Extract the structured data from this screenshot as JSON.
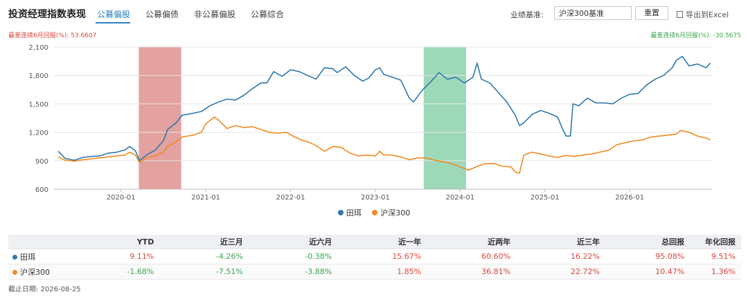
{
  "header": {
    "title": "投资经理指数表现",
    "tabs": [
      {
        "label": "公募偏股",
        "active": true
      },
      {
        "label": "公募偏债",
        "active": false
      },
      {
        "label": "非公募偏股",
        "active": false
      },
      {
        "label": "公募综合",
        "active": false
      }
    ],
    "benchmark_label": "业绩基准:",
    "benchmark_value": "沪深300基准",
    "reset_label": "重置",
    "export_label": "导出到Excel"
  },
  "drawdown": {
    "left_text": "最差连续6月回报(%): 53.6607",
    "right_text": "最差连续6月回报(%): -30.5675",
    "left_color": "#e0453b",
    "right_color": "#3aa64b"
  },
  "chart_data": {
    "type": "line",
    "y_ticks": [
      "600",
      "900",
      "1,200",
      "1,500",
      "1,800",
      "2,100"
    ],
    "ylim": [
      600,
      2100
    ],
    "x_ticks": [
      {
        "label": "2020-01",
        "t": 2020.0
      },
      {
        "label": "2021-01",
        "t": 2021.0
      },
      {
        "label": "2022-01",
        "t": 2022.0
      },
      {
        "label": "2023-01",
        "t": 2023.0
      },
      {
        "label": "2024-01",
        "t": 2024.0
      },
      {
        "label": "2025-01",
        "t": 2025.0
      },
      {
        "label": "2026-01",
        "t": 2026.0
      }
    ],
    "xlim": [
      2019.21,
      2026.97
    ],
    "highlight_bands": [
      {
        "from": 2020.21,
        "to": 2020.71,
        "color": "#d9817f",
        "opacity": 0.75
      },
      {
        "from": 2023.57,
        "to": 2024.07,
        "color": "#7ccca2",
        "opacity": 0.75
      }
    ],
    "series": [
      {
        "name": "田珥",
        "color": "#2e78ad",
        "points": [
          [
            2019.26,
            1000
          ],
          [
            2019.34,
            925
          ],
          [
            2019.45,
            905
          ],
          [
            2019.55,
            935
          ],
          [
            2019.65,
            945
          ],
          [
            2019.75,
            950
          ],
          [
            2019.85,
            980
          ],
          [
            2019.95,
            990
          ],
          [
            2020.05,
            1015
          ],
          [
            2020.1,
            1050
          ],
          [
            2020.17,
            1005
          ],
          [
            2020.22,
            900
          ],
          [
            2020.3,
            960
          ],
          [
            2020.4,
            1010
          ],
          [
            2020.5,
            1110
          ],
          [
            2020.55,
            1230
          ],
          [
            2020.65,
            1300
          ],
          [
            2020.72,
            1380
          ],
          [
            2020.85,
            1400
          ],
          [
            2020.95,
            1420
          ],
          [
            2021.05,
            1480
          ],
          [
            2021.15,
            1520
          ],
          [
            2021.25,
            1550
          ],
          [
            2021.35,
            1540
          ],
          [
            2021.45,
            1590
          ],
          [
            2021.55,
            1660
          ],
          [
            2021.65,
            1720
          ],
          [
            2021.72,
            1720
          ],
          [
            2021.8,
            1840
          ],
          [
            2021.9,
            1790
          ],
          [
            2022.0,
            1860
          ],
          [
            2022.1,
            1840
          ],
          [
            2022.2,
            1800
          ],
          [
            2022.3,
            1760
          ],
          [
            2022.4,
            1880
          ],
          [
            2022.5,
            1870
          ],
          [
            2022.55,
            1830
          ],
          [
            2022.65,
            1890
          ],
          [
            2022.75,
            1800
          ],
          [
            2022.85,
            1740
          ],
          [
            2022.92,
            1770
          ],
          [
            2023.0,
            1860
          ],
          [
            2023.05,
            1880
          ],
          [
            2023.1,
            1810
          ],
          [
            2023.2,
            1780
          ],
          [
            2023.3,
            1750
          ],
          [
            2023.4,
            1560
          ],
          [
            2023.45,
            1520
          ],
          [
            2023.55,
            1640
          ],
          [
            2023.65,
            1730
          ],
          [
            2023.75,
            1830
          ],
          [
            2023.85,
            1760
          ],
          [
            2023.95,
            1780
          ],
          [
            2024.05,
            1720
          ],
          [
            2024.15,
            1780
          ],
          [
            2024.2,
            1930
          ],
          [
            2024.25,
            1760
          ],
          [
            2024.35,
            1720
          ],
          [
            2024.45,
            1620
          ],
          [
            2024.55,
            1520
          ],
          [
            2024.65,
            1380
          ],
          [
            2024.7,
            1270
          ],
          [
            2024.75,
            1300
          ],
          [
            2024.85,
            1390
          ],
          [
            2024.95,
            1430
          ],
          [
            2025.05,
            1400
          ],
          [
            2025.15,
            1360
          ],
          [
            2025.2,
            1250
          ],
          [
            2025.25,
            1160
          ],
          [
            2025.3,
            1160
          ],
          [
            2025.33,
            1500
          ],
          [
            2025.4,
            1480
          ],
          [
            2025.5,
            1560
          ],
          [
            2025.6,
            1510
          ],
          [
            2025.7,
            1510
          ],
          [
            2025.8,
            1500
          ],
          [
            2025.9,
            1560
          ],
          [
            2026.0,
            1600
          ],
          [
            2026.1,
            1610
          ],
          [
            2026.2,
            1700
          ],
          [
            2026.3,
            1760
          ],
          [
            2026.4,
            1800
          ],
          [
            2026.5,
            1880
          ],
          [
            2026.55,
            1960
          ],
          [
            2026.62,
            2000
          ],
          [
            2026.7,
            1900
          ],
          [
            2026.8,
            1920
          ],
          [
            2026.9,
            1880
          ],
          [
            2026.95,
            1930
          ]
        ]
      },
      {
        "name": "沪深300",
        "color": "#f2891f",
        "points": [
          [
            2019.26,
            940
          ],
          [
            2019.34,
            905
          ],
          [
            2019.45,
            895
          ],
          [
            2019.55,
            910
          ],
          [
            2019.65,
            920
          ],
          [
            2019.75,
            930
          ],
          [
            2019.85,
            940
          ],
          [
            2019.95,
            950
          ],
          [
            2020.05,
            960
          ],
          [
            2020.1,
            990
          ],
          [
            2020.17,
            960
          ],
          [
            2020.22,
            880
          ],
          [
            2020.3,
            930
          ],
          [
            2020.4,
            950
          ],
          [
            2020.5,
            990
          ],
          [
            2020.55,
            1050
          ],
          [
            2020.65,
            1100
          ],
          [
            2020.72,
            1150
          ],
          [
            2020.85,
            1170
          ],
          [
            2020.95,
            1200
          ],
          [
            2021.0,
            1290
          ],
          [
            2021.1,
            1360
          ],
          [
            2021.15,
            1330
          ],
          [
            2021.25,
            1240
          ],
          [
            2021.35,
            1270
          ],
          [
            2021.45,
            1250
          ],
          [
            2021.55,
            1260
          ],
          [
            2021.65,
            1230
          ],
          [
            2021.75,
            1200
          ],
          [
            2021.85,
            1190
          ],
          [
            2021.95,
            1200
          ],
          [
            2022.05,
            1150
          ],
          [
            2022.15,
            1110
          ],
          [
            2022.2,
            1100
          ],
          [
            2022.3,
            1060
          ],
          [
            2022.4,
            1000
          ],
          [
            2022.5,
            1050
          ],
          [
            2022.6,
            1040
          ],
          [
            2022.7,
            980
          ],
          [
            2022.8,
            950
          ],
          [
            2022.9,
            960
          ],
          [
            2023.0,
            950
          ],
          [
            2023.05,
            1000
          ],
          [
            2023.1,
            960
          ],
          [
            2023.2,
            960
          ],
          [
            2023.3,
            940
          ],
          [
            2023.4,
            910
          ],
          [
            2023.5,
            930
          ],
          [
            2023.6,
            930
          ],
          [
            2023.7,
            905
          ],
          [
            2023.8,
            890
          ],
          [
            2023.9,
            870
          ],
          [
            2024.0,
            835
          ],
          [
            2024.1,
            800
          ],
          [
            2024.2,
            840
          ],
          [
            2024.3,
            870
          ],
          [
            2024.4,
            870
          ],
          [
            2024.5,
            840
          ],
          [
            2024.6,
            835
          ],
          [
            2024.65,
            780
          ],
          [
            2024.7,
            770
          ],
          [
            2024.75,
            960
          ],
          [
            2024.85,
            990
          ],
          [
            2024.95,
            970
          ],
          [
            2025.05,
            950
          ],
          [
            2025.15,
            935
          ],
          [
            2025.25,
            955
          ],
          [
            2025.35,
            945
          ],
          [
            2025.45,
            960
          ],
          [
            2025.55,
            970
          ],
          [
            2025.65,
            990
          ],
          [
            2025.75,
            1010
          ],
          [
            2025.85,
            1070
          ],
          [
            2025.95,
            1090
          ],
          [
            2026.05,
            1110
          ],
          [
            2026.15,
            1120
          ],
          [
            2026.25,
            1150
          ],
          [
            2026.35,
            1160
          ],
          [
            2026.45,
            1170
          ],
          [
            2026.55,
            1180
          ],
          [
            2026.6,
            1220
          ],
          [
            2026.7,
            1200
          ],
          [
            2026.8,
            1160
          ],
          [
            2026.9,
            1140
          ],
          [
            2026.95,
            1120
          ]
        ]
      }
    ]
  },
  "performance_table": {
    "headers": [
      "",
      "YTD",
      "近三月",
      "近六月",
      "近一年",
      "近两年",
      "近三年",
      "总回报",
      "年化回报"
    ],
    "rows": [
      {
        "name": "田珥",
        "color": "#2e78ad",
        "values": [
          "9.11%",
          "-4.26%",
          "-0.38%",
          "15.67%",
          "60.60%",
          "16.22%",
          "95.08%",
          "9.51%"
        ]
      },
      {
        "name": "沪深300",
        "color": "#f2891f",
        "values": [
          "-1.68%",
          "-7.51%",
          "-3.88%",
          "1.85%",
          "36.81%",
          "22.72%",
          "10.47%",
          "1.36%"
        ]
      }
    ]
  },
  "footer": {
    "date_label": "截止日期: 2026-08-25"
  }
}
